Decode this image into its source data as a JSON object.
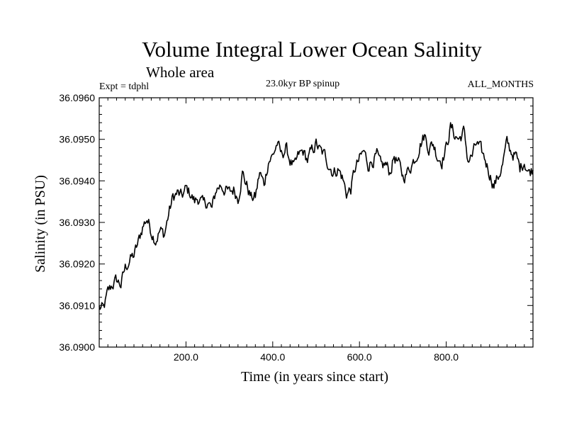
{
  "chart_data": {
    "type": "line",
    "title": "Volume Integral Lower Ocean Salinity",
    "subtitle": "Whole area",
    "left_label": "Expt = tdphl",
    "center_label": "23.0kyr BP spinup",
    "right_label": "ALL_MONTHS",
    "xlabel": "Time (in years since start)",
    "ylabel": "Salinity (in PSU)",
    "xlim": [
      0,
      1000
    ],
    "ylim": [
      36.09,
      36.096
    ],
    "x_ticks": [
      200,
      400,
      600,
      800
    ],
    "x_tick_labels": [
      "200.0",
      "400.0",
      "600.0",
      "800.0"
    ],
    "y_ticks": [
      36.09,
      36.091,
      36.092,
      36.093,
      36.094,
      36.095,
      36.096
    ],
    "y_tick_labels": [
      "36.0900",
      "36.0910",
      "36.0920",
      "36.0930",
      "36.0940",
      "36.0950",
      "36.0960"
    ],
    "series": [
      {
        "name": "salinity",
        "x": [
          0,
          10,
          20,
          30,
          40,
          50,
          60,
          70,
          80,
          90,
          100,
          110,
          120,
          130,
          140,
          150,
          160,
          170,
          180,
          190,
          200,
          210,
          220,
          230,
          240,
          250,
          260,
          270,
          280,
          290,
          300,
          310,
          320,
          330,
          340,
          350,
          360,
          370,
          380,
          390,
          400,
          410,
          420,
          430,
          440,
          450,
          460,
          470,
          480,
          490,
          500,
          510,
          520,
          530,
          540,
          550,
          560,
          570,
          580,
          590,
          600,
          610,
          620,
          630,
          640,
          650,
          660,
          670,
          680,
          690,
          700,
          710,
          720,
          730,
          740,
          750,
          760,
          770,
          780,
          790,
          800,
          810,
          820,
          830,
          840,
          850,
          860,
          870,
          880,
          890,
          900,
          910,
          920,
          930,
          940,
          950,
          960,
          970,
          980,
          990,
          1000
        ],
        "values": [
          36.09095,
          36.0909,
          36.0913,
          36.0915,
          36.0916,
          36.0915,
          36.0919,
          36.0921,
          36.0922,
          36.0925,
          36.0929,
          36.0931,
          36.0928,
          36.0926,
          36.0928,
          36.0927,
          36.0932,
          36.0936,
          36.0937,
          36.0936,
          36.0938,
          36.0937,
          36.0935,
          36.0936,
          36.0934,
          36.0935,
          36.0933,
          36.0938,
          36.0939,
          36.0938,
          36.0937,
          36.0938,
          36.0936,
          36.0942,
          36.0939,
          36.0936,
          36.0936,
          36.0942,
          36.0939,
          36.0945,
          36.0946,
          36.0949,
          36.0946,
          36.0948,
          36.0945,
          36.0943,
          36.0946,
          36.0947,
          36.0945,
          36.0947,
          36.0949,
          36.0947,
          36.0946,
          36.0944,
          36.0942,
          36.0943,
          36.0941,
          36.0937,
          36.0938,
          36.0943,
          36.0945,
          36.0947,
          36.0944,
          36.0945,
          36.0946,
          36.0943,
          36.0944,
          36.0942,
          36.0946,
          36.0944,
          36.0941,
          36.0942,
          36.0944,
          36.0946,
          36.0949,
          36.0951,
          36.0948,
          36.0949,
          36.0946,
          36.0945,
          36.0948,
          36.0953,
          36.0951,
          36.095,
          36.0952,
          36.0945,
          36.0946,
          36.0949,
          36.0947,
          36.0945,
          36.0942,
          36.0939,
          36.0941,
          36.0944,
          36.0949,
          36.0947,
          36.0946,
          36.0943,
          36.0945,
          36.0942,
          36.0943
        ]
      }
    ]
  }
}
